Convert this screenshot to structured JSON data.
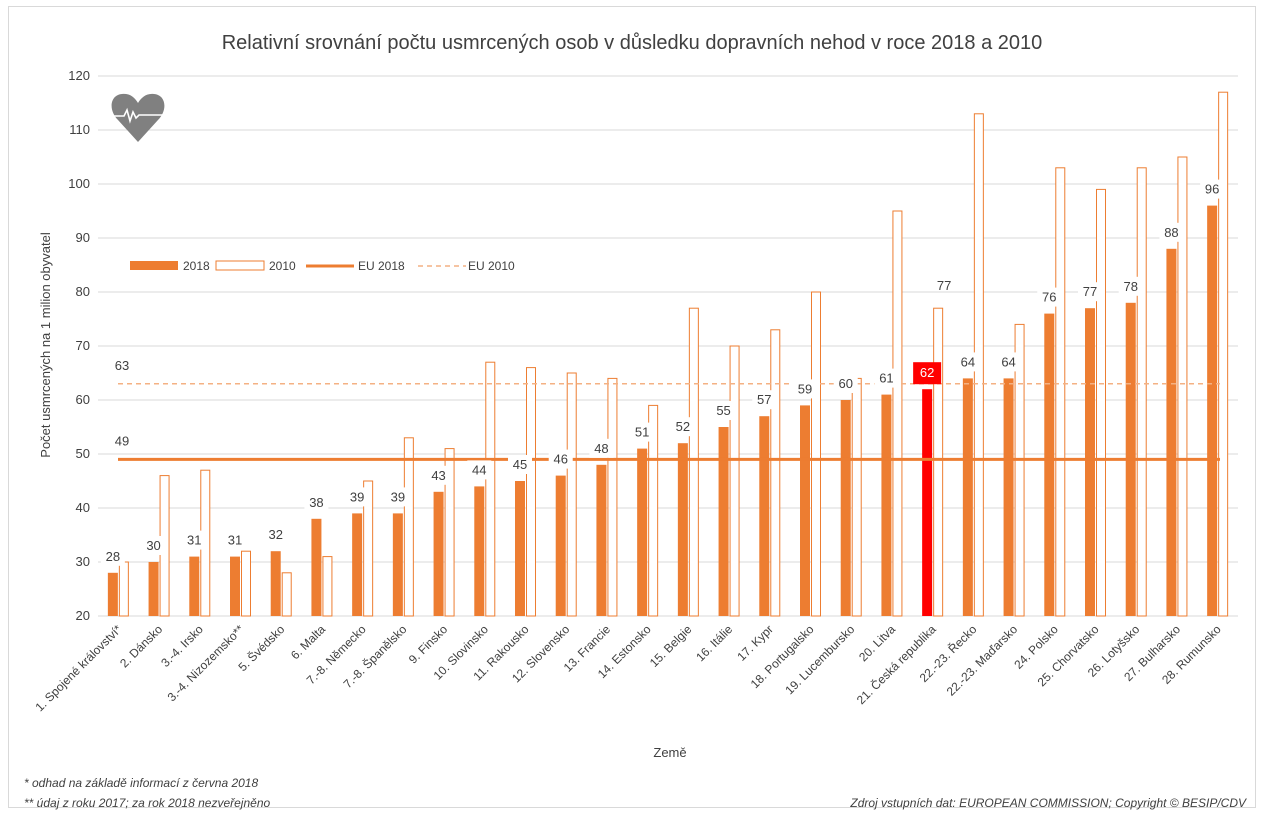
{
  "colors": {
    "bar2018": "#ED7D31",
    "highlight": "#FF0000",
    "outline2010": "#ED7D31",
    "eu2018": "#ED7D31",
    "eu2010": "#F4B183",
    "grid": "#D9D9D9",
    "text": "#404040",
    "icon": "#808080"
  },
  "icon": "heart-pulse-icon",
  "chart_data": {
    "type": "bar",
    "title": "Relativní srovnání počtu usmrcených osob v důsledku dopravních nehod v roce 2018 a 2010",
    "xlabel": "Země",
    "ylabel": "Počet usmrcených na 1 milion obyvatel",
    "ylim": [
      20,
      120
    ],
    "yticks": [
      20,
      30,
      40,
      50,
      60,
      70,
      80,
      90,
      100,
      110,
      120
    ],
    "grid": true,
    "legend_position": "upper-left",
    "categories": [
      "1. Spojené království*",
      "2. Dánsko",
      "3.-4. Irsko",
      "3.-4. Nizozemsko**",
      "5. Švédsko",
      "6. Malta",
      "7.-8. Německo",
      "7.-8. Španělsko",
      "9. Finsko",
      "10. Slovinsko",
      "11. Rakousko",
      "12. Slovensko",
      "13. Francie",
      "14. Estonsko",
      "15. Belgie",
      "16. Itálie",
      "17. Kypr",
      "18. Portugalsko",
      "19. Lucembursko",
      "20. Litva",
      "21. Česká republika",
      "22.-23. Řecko",
      "22.-23. Maďarsko",
      "24. Polsko",
      "25. Chorvatsko",
      "26. Lotyšsko",
      "27. Bulharsko",
      "28. Rumunsko"
    ],
    "series": [
      {
        "name": "2018",
        "style": "filled",
        "values": [
          28,
          30,
          31,
          31,
          32,
          38,
          39,
          39,
          43,
          44,
          45,
          46,
          48,
          51,
          52,
          55,
          57,
          59,
          60,
          61,
          62,
          64,
          64,
          76,
          77,
          78,
          88,
          96
        ]
      },
      {
        "name": "2010",
        "style": "outline",
        "values": [
          30,
          46,
          47,
          32,
          28,
          31,
          45,
          53,
          51,
          67,
          66,
          65,
          64,
          59,
          77,
          70,
          73,
          80,
          64,
          95,
          77,
          113,
          74,
          103,
          99,
          103,
          105,
          117
        ]
      },
      {
        "name": "EU 2018",
        "style": "solid-line",
        "value": 49
      },
      {
        "name": "EU 2010",
        "style": "dashed-line",
        "value": 63
      }
    ],
    "highlight_index": 20,
    "data_labels": [
      "28",
      "30",
      "31",
      "31",
      "32",
      "38",
      "39",
      "39",
      "43",
      "44",
      "45",
      "46",
      "48",
      "51",
      "52",
      "55",
      "57",
      "59",
      "60",
      "61",
      "62",
      "64",
      "64",
      "76",
      "77",
      "78",
      "88",
      "96"
    ],
    "extra_labels": [
      {
        "text": "77",
        "category_index": 20,
        "value": 77
      }
    ],
    "line_labels": [
      {
        "text": "49",
        "value": 49
      },
      {
        "text": "63",
        "value": 63
      }
    ]
  },
  "footnotes": {
    "note1": "* odhad na základě informací z června 2018",
    "note2": "** údaj z roku 2017; za rok 2018 nezveřejněno",
    "source": "Zdroj vstupních dat: EUROPEAN COMMISSION; Copyright © BESIP/CDV"
  }
}
